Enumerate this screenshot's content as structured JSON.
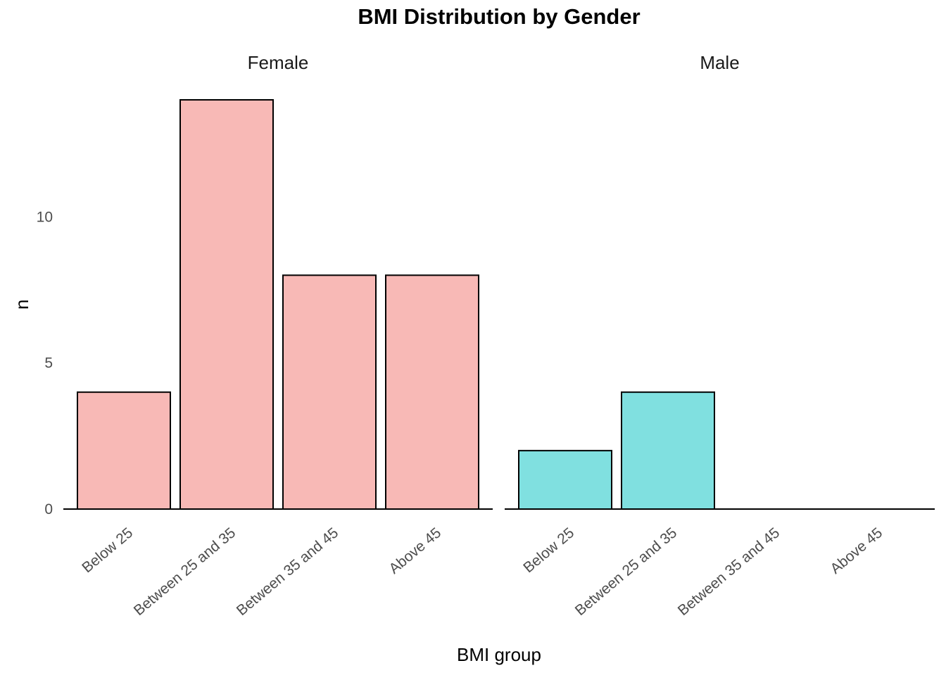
{
  "chart_data": {
    "type": "bar",
    "title": "BMI Distribution by Gender",
    "xlabel": "BMI group",
    "ylabel": "n",
    "categories": [
      "Below 25",
      "Between 25 and 35",
      "Between 35 and 45",
      "Above 45"
    ],
    "yticks": [
      "0",
      "5",
      "10"
    ],
    "ylim": [
      0,
      14.7
    ],
    "grid": false,
    "legend": "none",
    "panels": [
      {
        "name": "Female",
        "color": "#F8B9B6",
        "values": [
          4,
          14,
          8,
          8
        ]
      },
      {
        "name": "Male",
        "color": "#80E0E0",
        "values": [
          2,
          4,
          0,
          0
        ]
      }
    ]
  }
}
